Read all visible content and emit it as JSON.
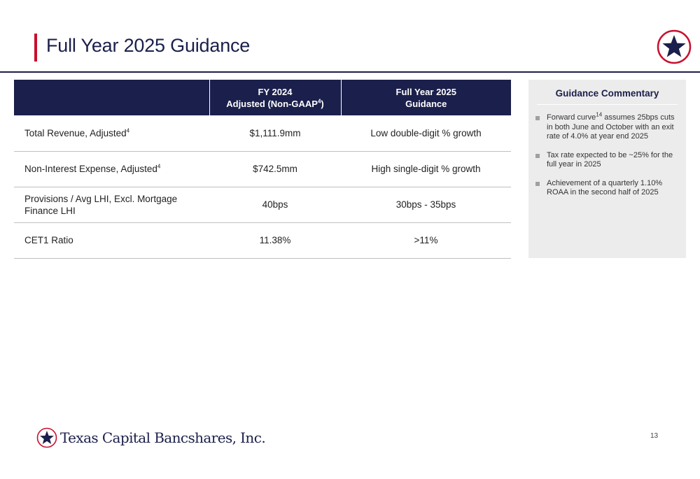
{
  "header": {
    "title": "Full Year 2025 Guidance"
  },
  "colors": {
    "navy": "#1b1f4b",
    "accent_red": "#c8102e",
    "panel_gray": "#ececec"
  },
  "icons": {
    "badge": "star-badge-icon",
    "logo": "star-logo-icon"
  },
  "table": {
    "headers": [
      {
        "label": "",
        "line1": "",
        "line2": ""
      },
      {
        "line1": "FY 2024",
        "line2": "Adjusted (Non-GAAP",
        "sup": "4",
        "tail": ")"
      },
      {
        "line1": "Full Year 2025",
        "line2": "Guidance"
      }
    ],
    "rows": [
      {
        "metric": "Total Revenue, Adjusted",
        "sup": "4",
        "fy2024": "$1,111.9mm",
        "guidance": "Low double-digit % growth"
      },
      {
        "metric": "Non-Interest Expense, Adjusted",
        "sup": "4",
        "fy2024": "$742.5mm",
        "guidance": "High single-digit % growth"
      },
      {
        "metric": "Provisions / Avg LHI, Excl. Mortgage Finance LHI",
        "sup": "",
        "fy2024": "40bps",
        "guidance": "30bps - 35bps"
      },
      {
        "metric": "CET1 Ratio",
        "sup": "",
        "fy2024": "11.38%",
        "guidance": ">11%"
      }
    ]
  },
  "commentary": {
    "title": "Guidance Commentary",
    "items": [
      {
        "pre": "Forward curve",
        "sup": "14",
        "post": " assumes 25bps cuts in both June and October with an exit rate of 4.0% at year end 2025"
      },
      {
        "pre": "Tax rate expected to be ~25% for the full year in 2025",
        "sup": "",
        "post": ""
      },
      {
        "pre": "Achievement of a quarterly 1.10% ROAA in the second half of 2025",
        "sup": "",
        "post": ""
      }
    ]
  },
  "footer": {
    "company": "Texas Capital Bancshares, Inc.",
    "page_number": "13"
  }
}
